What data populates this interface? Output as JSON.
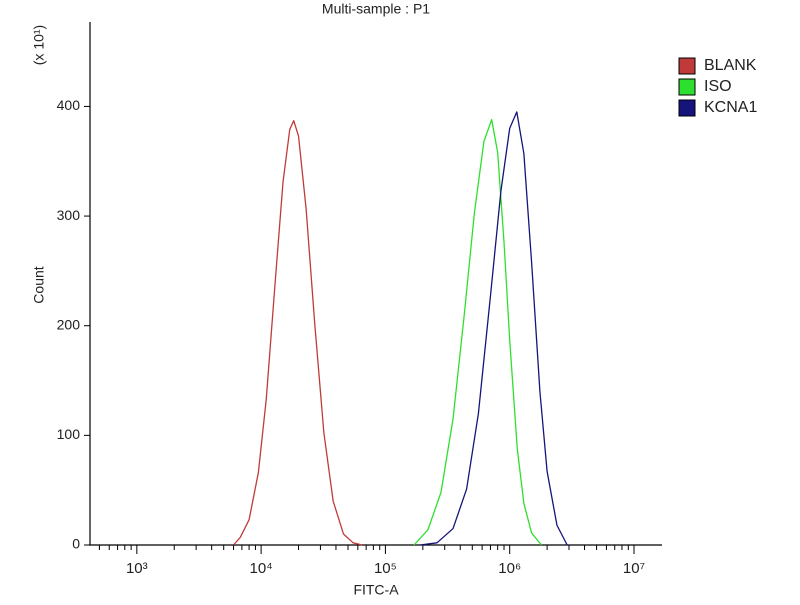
{
  "chart_data": {
    "type": "line",
    "title": "Multi-sample : P1",
    "xlabel": "FITC-A",
    "ylabel": "Count",
    "y_multiplier": "(x 10¹)",
    "xscale": "log",
    "xlim": [
      420,
      16800000
    ],
    "ylim": [
      0,
      477
    ],
    "xticks": [
      {
        "value": 1000,
        "label": "10³"
      },
      {
        "value": 10000,
        "label": "10⁴"
      },
      {
        "value": 100000,
        "label": "10⁵"
      },
      {
        "value": 1000000,
        "label": "10⁶"
      },
      {
        "value": 10000000,
        "label": "10⁷"
      }
    ],
    "xminorticks": [
      500,
      600,
      700,
      800,
      900,
      2000,
      3000,
      4000,
      5000,
      6000,
      7000,
      8000,
      9000,
      20000,
      30000,
      40000,
      50000,
      60000,
      70000,
      80000,
      90000,
      200000,
      300000,
      400000,
      500000,
      600000,
      700000,
      800000,
      900000,
      2000000,
      3000000,
      4000000,
      5000000,
      6000000,
      7000000,
      8000000,
      9000000
    ],
    "yticks": [
      0,
      100,
      200,
      300,
      400
    ],
    "legend": "upper right outside",
    "series": [
      {
        "name": "BLANK",
        "color": "#c03a3a",
        "x": [
          6000,
          6800,
          8000,
          9500,
          11000,
          13000,
          15000,
          17000,
          18300,
          20000,
          23000,
          27000,
          32000,
          38000,
          46000,
          55000,
          65000
        ],
        "values": [
          0,
          7,
          23,
          66,
          133,
          241,
          331,
          379,
          387,
          373,
          307,
          202,
          102,
          40,
          10,
          2,
          0
        ]
      },
      {
        "name": "ISO",
        "color": "#2ee02e",
        "x": [
          170000,
          220000,
          280000,
          350000,
          430000,
          520000,
          620000,
          716000,
          800000,
          900000,
          1000000,
          1150000,
          1300000,
          1500000,
          1800000
        ],
        "values": [
          0,
          14,
          48,
          115,
          209,
          303,
          368,
          388,
          358,
          276,
          187,
          88,
          38,
          11,
          0
        ]
      },
      {
        "name": "KCNA1",
        "color": "#14147a",
        "x": [
          190000,
          260000,
          350000,
          450000,
          560000,
          700000,
          850000,
          1000000,
          1140000,
          1300000,
          1500000,
          1750000,
          2000000,
          2400000,
          2900000
        ],
        "values": [
          0,
          2,
          15,
          51,
          120,
          227,
          323,
          380,
          395,
          357,
          258,
          140,
          67,
          18,
          0
        ]
      }
    ]
  }
}
